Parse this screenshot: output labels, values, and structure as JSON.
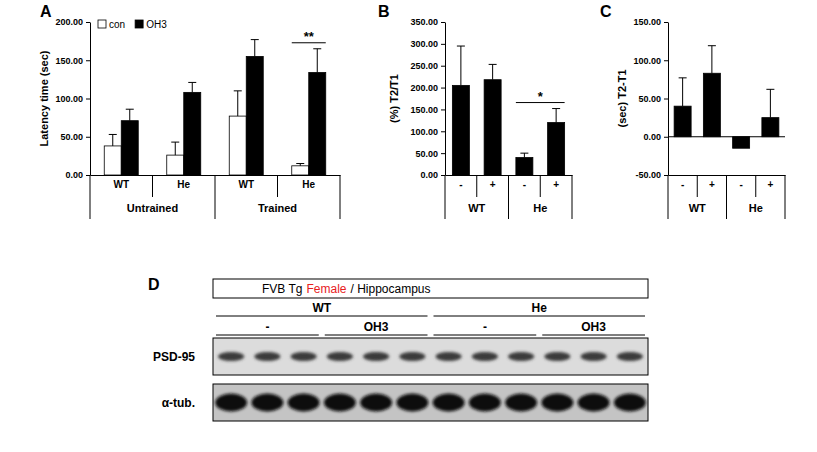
{
  "chart_data": [
    {
      "type": "bar",
      "title": "A",
      "y_label": "Latency time (sec)",
      "categories": [
        "WT",
        "He",
        "WT",
        "He"
      ],
      "category_groups": [
        "Untrained",
        "Untrained",
        "Trained",
        "Trained"
      ],
      "series": [
        {
          "name": "con",
          "color": "#ffffff",
          "values": [
            38,
            26,
            77,
            12
          ],
          "errors": [
            15,
            17,
            33,
            3
          ]
        },
        {
          "name": "OH3",
          "color": "#000000",
          "values": [
            71,
            108,
            155,
            134
          ],
          "errors": [
            15,
            13,
            22,
            31
          ]
        }
      ],
      "ylim": [
        0,
        200
      ],
      "yticks": [
        {
          "value": 0,
          "label": "0.00"
        },
        {
          "value": 50,
          "label": "50.00"
        },
        {
          "value": 100,
          "label": "100.00"
        },
        {
          "value": 150,
          "label": "150.00"
        },
        {
          "value": 200,
          "label": "200.00"
        }
      ],
      "legend": "upper left",
      "grid": false,
      "annotations": [
        {
          "text": "**",
          "categories": [
            3
          ]
        }
      ]
    },
    {
      "type": "bar",
      "title": "B",
      "y_label": "(%) T2/T1",
      "categories": [
        "-",
        "+",
        "-",
        "+"
      ],
      "category_groups": [
        "WT",
        "WT",
        "He",
        "He"
      ],
      "values": [
        205,
        218,
        40,
        120
      ],
      "errors": [
        90,
        35,
        10,
        32
      ],
      "color": "#000000",
      "ylim": [
        0,
        350
      ],
      "yticks": [
        {
          "value": 0,
          "label": "0.00"
        },
        {
          "value": 50,
          "label": "50.00"
        },
        {
          "value": 100,
          "label": "100.00"
        },
        {
          "value": 150,
          "label": "150.00"
        },
        {
          "value": 200,
          "label": "200.00"
        },
        {
          "value": 250,
          "label": "250.00"
        },
        {
          "value": 300,
          "label": "300.00"
        },
        {
          "value": 350,
          "label": "350.00"
        }
      ],
      "grid": false,
      "annotations": [
        {
          "text": "*",
          "categories": [
            2,
            3
          ]
        }
      ]
    },
    {
      "type": "bar",
      "title": "C",
      "y_label": "(sec) T2-T1",
      "categories": [
        "-",
        "+",
        "-",
        "+"
      ],
      "category_groups": [
        "WT",
        "WT",
        "He",
        "He"
      ],
      "values": [
        40,
        83,
        -15,
        25
      ],
      "errors": [
        37,
        36,
        null,
        37
      ],
      "color": "#000000",
      "ylim": [
        -50,
        150
      ],
      "yticks": [
        {
          "value": -50,
          "label": "-50.00"
        },
        {
          "value": 0,
          "label": "0.00"
        },
        {
          "value": 50,
          "label": "50.00"
        },
        {
          "value": 100,
          "label": "100.00"
        },
        {
          "value": 150,
          "label": "150.00"
        }
      ],
      "grid": false
    }
  ],
  "blot": {
    "panel": "D",
    "title": [
      {
        "text": "FVB Tg"
      },
      {
        "text": "Female",
        "color": "#e8211e"
      },
      {
        "text": "/ Hippocampus"
      }
    ],
    "groups": [
      {
        "label": "WT",
        "conditions": [
          {
            "label": "-",
            "lanes": 3
          },
          {
            "label": "OH3",
            "lanes": 3
          }
        ]
      },
      {
        "label": "He",
        "conditions": [
          {
            "label": "-",
            "lanes": 3
          },
          {
            "label": "OH3",
            "lanes": 3
          }
        ]
      }
    ],
    "rows": [
      {
        "label": "PSD-95"
      },
      {
        "label": "α-tub."
      }
    ]
  }
}
